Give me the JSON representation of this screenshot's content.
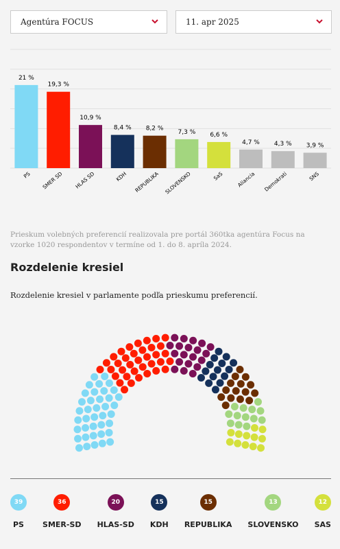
{
  "filters": {
    "agency": "Agentúra FOCUS",
    "date": "11. apr 2025"
  },
  "chart_data": {
    "type": "bar",
    "categories": [
      "PS",
      "SMER SD",
      "HLAS SD",
      "KDH",
      "REPUBLIKA",
      "SLOVENSKO",
      "SaS",
      "Aliancia",
      "Demokrati",
      "SNS"
    ],
    "values": [
      21,
      19.3,
      10.9,
      8.4,
      8.2,
      7.3,
      6.6,
      4.7,
      4.3,
      3.9
    ],
    "value_labels": [
      "21 %",
      "19,3 %",
      "10,9 %",
      "8,4 %",
      "8,2 %",
      "7,3 %",
      "6,6 %",
      "4,7 %",
      "4,3 %",
      "3,9 %"
    ],
    "colors": [
      "#80d9f5",
      "#ff1d00",
      "#7b1157",
      "#15315b",
      "#6b2e02",
      "#a3d67f",
      "#d4e03c",
      "#bdbdbd",
      "#bdbdbd",
      "#bdbdbd"
    ],
    "ylim": [
      0,
      30
    ],
    "yticks": [
      0,
      5,
      10,
      15,
      20,
      25,
      30
    ],
    "grid": true
  },
  "note": "Prieskum volebných preferencií realizovala pre portál 360tka agentúra Focus na vzorke 1020 respondentov v termíne od 1. do 8. apríla 2024.",
  "seats": {
    "title": "Rozdelenie kresiel",
    "subtitle": "Rozdelenie kresiel v parlamente podľa prieskumu preferencií.",
    "parties": [
      {
        "name": "PS",
        "color": "#80d9f5",
        "seats": 39
      },
      {
        "name": "SMER-SD",
        "color": "#ff1d00",
        "seats": 36
      },
      {
        "name": "HLAS-SD",
        "color": "#7b1157",
        "seats": 20
      },
      {
        "name": "KDH",
        "color": "#15315b",
        "seats": 15
      },
      {
        "name": "REPUBLIKA",
        "color": "#6b2e02",
        "seats": 15
      },
      {
        "name": "SLOVENSKO",
        "color": "#a3d67f",
        "seats": 13
      },
      {
        "name": "SAS",
        "color": "#d4e03c",
        "seats": 12
      }
    ]
  }
}
